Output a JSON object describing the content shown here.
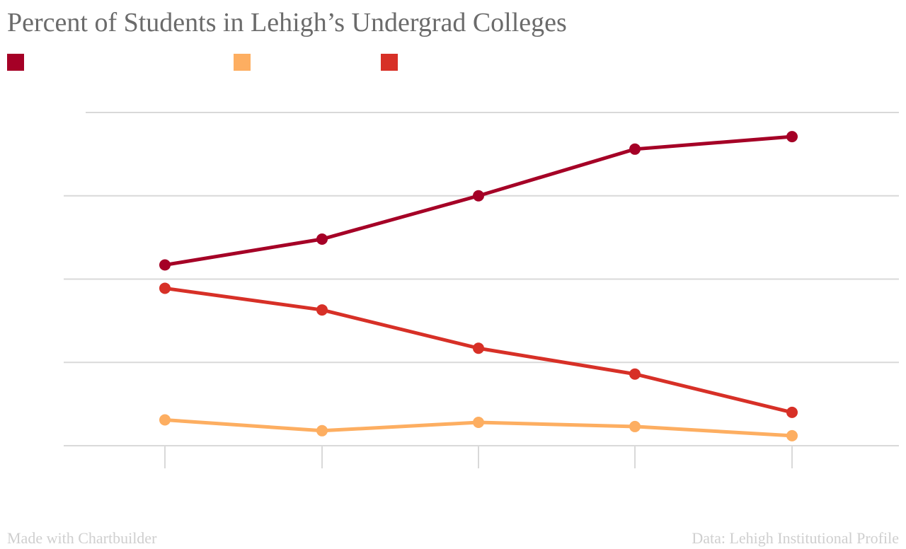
{
  "title": "Percent of Students in Lehigh’s Undergrad Colleges",
  "footer": {
    "credit": "Made with Chartbuilder",
    "source": "Data: Lehigh Institutional Profile"
  },
  "chart_data": {
    "type": "line",
    "title": "Percent of Students in Lehigh’s Undergrad Colleges",
    "categories": [
      "",
      "",
      "",
      "",
      ""
    ],
    "ylim": [
      0,
      40
    ],
    "grid": true,
    "legend_position": "top-left",
    "series": [
      {
        "color": "#a50026",
        "values": [
          21.7,
          24.8,
          30.0,
          35.6,
          37.1
        ]
      },
      {
        "color": "#fdae61",
        "values": [
          3.1,
          1.8,
          2.8,
          2.3,
          1.2
        ]
      },
      {
        "color": "#d73027",
        "values": [
          18.9,
          16.3,
          11.7,
          8.6,
          4.0
        ]
      }
    ]
  }
}
